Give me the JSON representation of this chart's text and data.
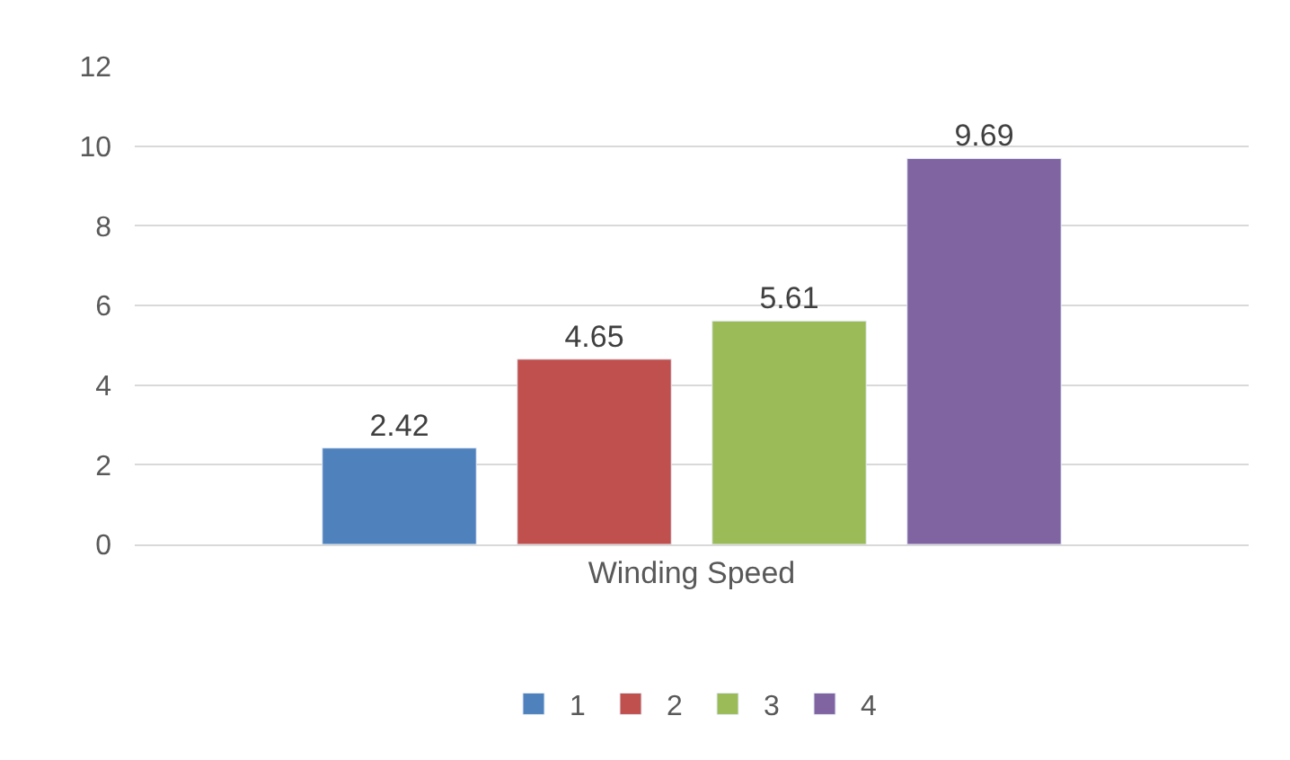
{
  "chart_data": {
    "type": "bar",
    "categories": [
      "Winding Speed"
    ],
    "series": [
      {
        "name": "1",
        "color": "#4f81bd",
        "values": [
          2.42
        ]
      },
      {
        "name": "2",
        "color": "#c0504d",
        "values": [
          4.65
        ]
      },
      {
        "name": "3",
        "color": "#9bbb59",
        "values": [
          5.61
        ]
      },
      {
        "name": "4",
        "color": "#8064a2",
        "values": [
          9.69
        ]
      }
    ],
    "ylim": [
      0,
      12
    ],
    "yticks": [
      0,
      2,
      4,
      6,
      8,
      10,
      12
    ],
    "grid": "y",
    "legend": "bottom",
    "data_labels": true
  }
}
